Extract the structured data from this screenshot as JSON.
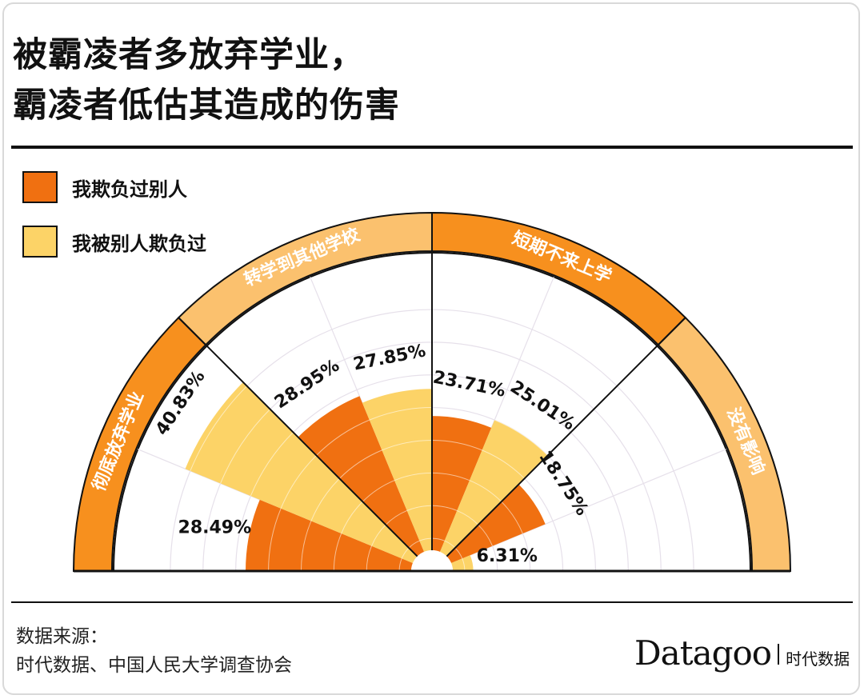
{
  "title_line1": "被霸凌者多放弃学业，",
  "title_line2": "霸凌者低估其造成的伤害",
  "legend": {
    "bully": {
      "label": "我欺负过别人",
      "color": "#f07011"
    },
    "victim": {
      "label": "我被别人欺负过",
      "color": "#fcd367"
    }
  },
  "source_label": "数据来源：",
  "source_text": "时代数据、中国人民大学调查协会",
  "brand_name": "Datagoo",
  "brand_cn": "时代数据",
  "chart_data": {
    "type": "polar-bar",
    "groups": [
      {
        "label": "彻底放弃学业",
        "bully": 28.49,
        "victim": 40.83,
        "band_color": "#f7901e"
      },
      {
        "label": "转学到其他学校",
        "bully": 28.95,
        "victim": 27.85,
        "band_color": "#fbc16e"
      },
      {
        "label": "短期不来上学",
        "bully": 23.71,
        "victim": 25.01,
        "band_color": "#f7901e"
      },
      {
        "label": "没有影响",
        "bully": 18.75,
        "victim": 6.31,
        "band_color": "#fbc16e"
      }
    ],
    "value_labels": {
      "g0_bully": "28.49%",
      "g0_victim": "40.83%",
      "g1_bully": "28.95%",
      "g1_victim": "27.85%",
      "g2_bully": "23.71%",
      "g2_victim": "25.01%",
      "g3_bully": "18.75%",
      "g3_victim": "6.31%"
    },
    "rmax": 45,
    "grid": true
  }
}
